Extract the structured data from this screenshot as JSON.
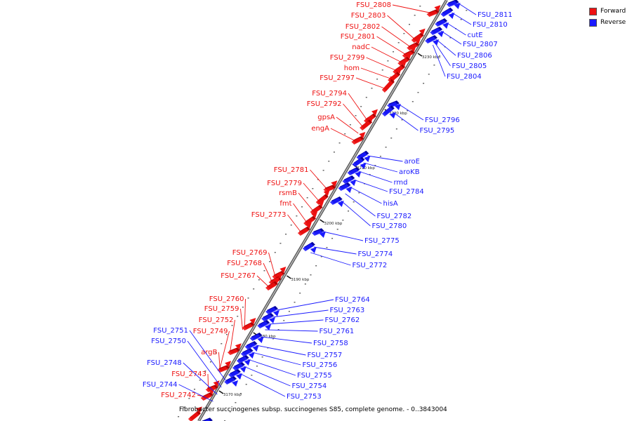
{
  "colors": {
    "forward": "#ee1111",
    "forward_dark": "#aa0000",
    "reverse": "#1a1aff",
    "reverse_dark": "#0000a0",
    "axis": "#888888",
    "tick": "#333333"
  },
  "legend": [
    {
      "label": "Forward",
      "color": "#ee1111"
    },
    {
      "label": "Reverse",
      "color": "#1a1aff"
    }
  ],
  "caption": "Fibrobacter succinogenes subsp. succinogenes S85, complete genome. - 0..3843004",
  "scale_labels": [
    "3230 kbp",
    "3220 kbp",
    "3210 kbp",
    "3200 kbp",
    "3190 kbp",
    "3180 kbp",
    "3170 kbp"
  ],
  "forward_labels": [
    "FSU_2808",
    "FSU_2803",
    "FSU_2802",
    "FSU_2801",
    "nadC",
    "FSU_2799",
    "hom",
    "FSU_2797",
    "FSU_2794",
    "FSU_2792",
    "gpsA",
    "engA",
    "FSU_2781",
    "FSU_2779",
    "rsmB",
    "fmt",
    "FSU_2773",
    "FSU_2769",
    "FSU_2768",
    "FSU_2767",
    "FSU_2760",
    "FSU_2759",
    "FSU_2752",
    "FSU_2749",
    "argB",
    "FSU_2743",
    "FSU_2742"
  ],
  "reverse_labels": [
    "FSU_2811",
    "FSU_2810",
    "cutE",
    "FSU_2807",
    "FSU_2806",
    "FSU_2805",
    "FSU_2804",
    "FSU_2796",
    "FSU_2795",
    "aroE",
    "aroKB",
    "rmd",
    "FSU_2784",
    "hisA",
    "FSU_2782",
    "FSU_2780",
    "FSU_2775",
    "FSU_2774",
    "FSU_2772",
    "FSU_2764",
    "FSU_2763",
    "FSU_2762",
    "FSU_2761",
    "FSU_2758",
    "FSU_2757",
    "FSU_2756",
    "FSU_2755",
    "FSU_2754",
    "FSU_2753",
    "FSU_2751",
    "FSU_2750",
    "FSU_2748",
    "FSU_2744"
  ]
}
